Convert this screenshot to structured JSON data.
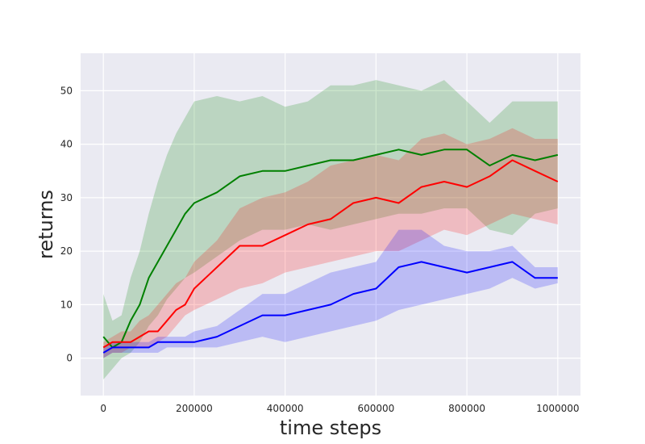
{
  "chart_data": {
    "type": "line",
    "xlabel": "time steps",
    "ylabel": "returns",
    "xlim": [
      -50000,
      1050000
    ],
    "ylim": [
      -7,
      57
    ],
    "xticks": [
      0,
      200000,
      400000,
      600000,
      800000,
      1000000
    ],
    "yticks": [
      0,
      10,
      20,
      30,
      40,
      50
    ],
    "grid": true,
    "background": "#eaeaf2",
    "series": [
      {
        "color": "#008000",
        "x": [
          0,
          20000,
          40000,
          60000,
          80000,
          100000,
          120000,
          140000,
          160000,
          180000,
          200000,
          250000,
          300000,
          350000,
          400000,
          450000,
          500000,
          550000,
          600000,
          650000,
          700000,
          750000,
          800000,
          850000,
          900000,
          950000,
          1000000
        ],
        "y": [
          4,
          2,
          3,
          7,
          10,
          15,
          18,
          21,
          24,
          27,
          29,
          31,
          34,
          35,
          35,
          36,
          37,
          37,
          38,
          39,
          38,
          39,
          39,
          36,
          38,
          37,
          38
        ],
        "lower": [
          -4,
          -2,
          0,
          1,
          3,
          6,
          8,
          11,
          13,
          15,
          16,
          19,
          22,
          24,
          24,
          25,
          24,
          25,
          26,
          27,
          27,
          28,
          28,
          24,
          23,
          27,
          28
        ],
        "upper": [
          12,
          7,
          8,
          15,
          20,
          27,
          33,
          38,
          42,
          45,
          48,
          49,
          48,
          49,
          47,
          48,
          51,
          51,
          52,
          51,
          50,
          52,
          48,
          44,
          48,
          48,
          48
        ]
      },
      {
        "color": "#ff0000",
        "x": [
          0,
          20000,
          40000,
          60000,
          80000,
          100000,
          120000,
          140000,
          160000,
          180000,
          200000,
          250000,
          300000,
          350000,
          400000,
          450000,
          500000,
          550000,
          600000,
          650000,
          700000,
          750000,
          800000,
          850000,
          900000,
          950000,
          1000000
        ],
        "y": [
          2,
          3,
          3,
          3,
          4,
          5,
          5,
          7,
          9,
          10,
          13,
          17,
          21,
          21,
          23,
          25,
          26,
          29,
          30,
          29,
          32,
          33,
          32,
          34,
          37,
          35,
          33
        ],
        "lower": [
          0,
          1,
          1,
          2,
          2,
          2,
          3,
          4,
          6,
          8,
          9,
          11,
          13,
          14,
          16,
          17,
          18,
          19,
          20,
          20,
          22,
          24,
          23,
          25,
          27,
          26,
          25
        ],
        "upper": [
          3,
          4,
          5,
          5,
          7,
          8,
          10,
          12,
          14,
          15,
          18,
          22,
          28,
          30,
          31,
          33,
          36,
          37,
          38,
          37,
          41,
          42,
          40,
          41,
          43,
          41,
          41
        ]
      },
      {
        "color": "#0000ff",
        "x": [
          0,
          20000,
          40000,
          60000,
          80000,
          100000,
          120000,
          140000,
          160000,
          180000,
          200000,
          250000,
          300000,
          350000,
          400000,
          450000,
          500000,
          550000,
          600000,
          650000,
          700000,
          750000,
          800000,
          850000,
          900000,
          950000,
          1000000
        ],
        "y": [
          1,
          2,
          2,
          2,
          2,
          2,
          3,
          3,
          3,
          3,
          3,
          4,
          6,
          8,
          8,
          9,
          10,
          12,
          13,
          17,
          18,
          17,
          16,
          17,
          18,
          15,
          15
        ],
        "lower": [
          0,
          1,
          1,
          1,
          1,
          1,
          1,
          2,
          2,
          2,
          2,
          2,
          3,
          4,
          3,
          4,
          5,
          6,
          7,
          9,
          10,
          11,
          12,
          13,
          15,
          13,
          14
        ],
        "upper": [
          2,
          3,
          3,
          3,
          3,
          3,
          4,
          4,
          4,
          4,
          5,
          6,
          9,
          12,
          12,
          14,
          16,
          17,
          18,
          24,
          24,
          21,
          20,
          20,
          21,
          17,
          17
        ]
      }
    ]
  }
}
